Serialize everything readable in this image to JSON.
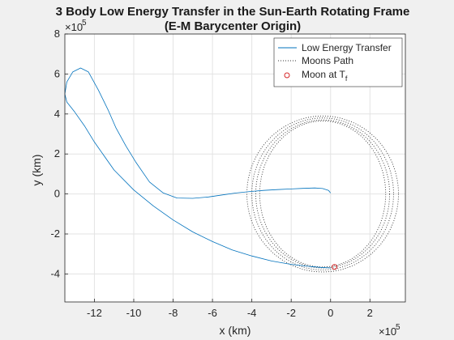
{
  "chart_data": {
    "type": "line",
    "title_line1": "3 Body Low Energy Transfer in the Sun-Earth Rotating Frame",
    "title_line2": "(E-M Barycenter Origin)",
    "xlabel": "x (km)",
    "ylabel": "y (km)",
    "x_exponent_base": "×10",
    "x_exponent_power": "5",
    "y_exponent_base": "×10",
    "y_exponent_power": "5",
    "xlim": [
      -1.35,
      0.38
    ],
    "ylim": [
      -5.4,
      8.0
    ],
    "xticks": [
      -12,
      -10,
      -8,
      -6,
      -4,
      -2,
      0,
      2
    ],
    "yticks": [
      -4,
      -2,
      0,
      2,
      4,
      6,
      8
    ],
    "grid": true,
    "legend_position": "top-right",
    "series": [
      {
        "name": "Low Energy Transfer",
        "color": "#0072bd",
        "style": "solid",
        "x": [
          0.0,
          -0.05,
          -0.1,
          -0.2,
          -0.3,
          -0.4,
          -0.5,
          -0.6,
          -0.7,
          -0.8,
          -0.9,
          -1.0,
          -1.1,
          -1.2,
          -1.25,
          -1.3,
          -1.34,
          -1.35,
          -1.34,
          -1.31,
          -1.27,
          -1.23,
          -1.18,
          -1.13,
          -1.09,
          -1.04,
          -0.99,
          -0.92,
          -0.85,
          -0.78,
          -0.7,
          -0.62,
          -0.55,
          -0.48,
          -0.41,
          -0.34,
          -0.27,
          -0.2,
          -0.14,
          -0.08,
          -0.04,
          -0.01,
          0.0
        ],
        "y_label_note": "",
        "y": [
          -3.7,
          -3.67,
          -3.63,
          -3.52,
          -3.35,
          -3.1,
          -2.8,
          -2.38,
          -1.9,
          -1.3,
          -0.6,
          0.2,
          1.2,
          2.6,
          3.4,
          4.1,
          4.6,
          5.0,
          5.6,
          6.1,
          6.3,
          6.1,
          5.2,
          4.2,
          3.3,
          2.4,
          1.6,
          0.6,
          0.05,
          -0.2,
          -0.22,
          -0.15,
          -0.05,
          0.05,
          0.12,
          0.18,
          0.22,
          0.25,
          0.28,
          0.3,
          0.27,
          0.18,
          0.05
        ]
      },
      {
        "name": "Moons Path",
        "color": "#333333",
        "style": "dotted",
        "center": [
          -0.04,
          0.0
        ],
        "radius_x": [
          0.385,
          0.36,
          0.34,
          0.32
        ],
        "radius_y": [
          3.9,
          3.8,
          3.7,
          3.65
        ]
      },
      {
        "name": "Moon at T",
        "name_sub": "f",
        "color": "#d62728",
        "marker": "circle",
        "x": [
          0.02
        ],
        "y": [
          -3.65
        ]
      }
    ]
  }
}
